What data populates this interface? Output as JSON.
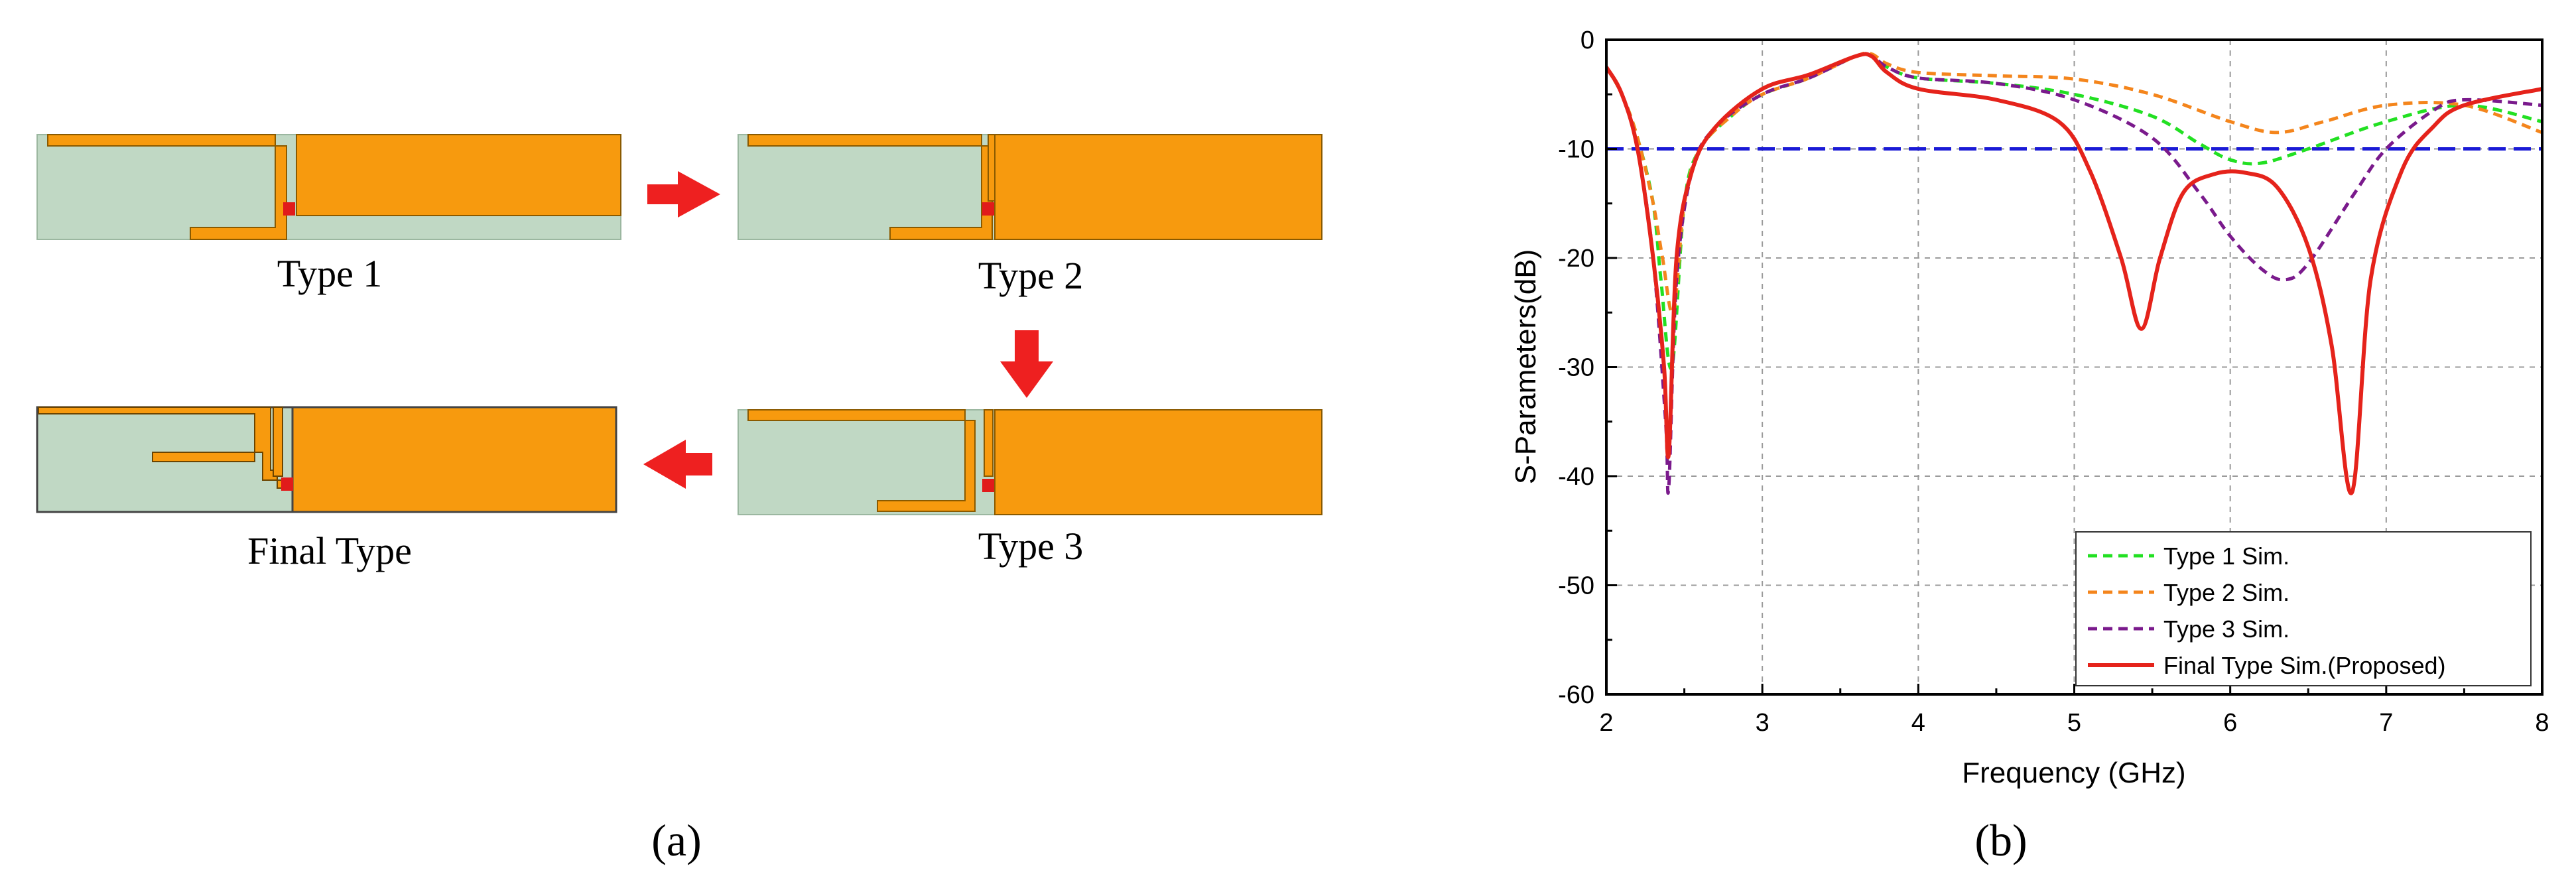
{
  "panel_a": {
    "label": "(a)",
    "types": [
      {
        "name": "Type 1"
      },
      {
        "name": "Type 2"
      },
      {
        "name": "Type 3"
      },
      {
        "name": "Final Type"
      }
    ],
    "colors": {
      "substrate": "#c0d8c4",
      "copper": "#f79a0e",
      "port": "#e11b1b",
      "arrow": "#ee2020"
    }
  },
  "panel_b": {
    "label": "(b)"
  },
  "chart_data": {
    "type": "line",
    "title": "",
    "xlabel": "Frequency (GHz)",
    "ylabel": "S-Parameters(dB)",
    "xlim": [
      2,
      8
    ],
    "ylim": [
      -60,
      0
    ],
    "xticks": [
      2,
      3,
      4,
      5,
      6,
      7,
      8
    ],
    "yticks": [
      0,
      -10,
      -20,
      -30,
      -40,
      -50,
      -60
    ],
    "grid": true,
    "legend_position": "bottom-right",
    "reference_line": {
      "y": -10,
      "color": "#1a1ad6",
      "style": "dashed"
    },
    "series": [
      {
        "name": "Type 1 Sim.",
        "color": "#22e022",
        "style": "dashed",
        "x": [
          2.0,
          2.1,
          2.2,
          2.3,
          2.35,
          2.42,
          2.5,
          2.6,
          2.8,
          3.0,
          3.3,
          3.6,
          3.7,
          3.8,
          4.0,
          4.5,
          5.0,
          5.5,
          5.8,
          6.0,
          6.2,
          6.5,
          7.0,
          7.5,
          8.0
        ],
        "y": [
          -2.5,
          -5,
          -9,
          -15,
          -22,
          -30,
          -15,
          -10,
          -7,
          -5,
          -3.5,
          -1.5,
          -1.5,
          -2.5,
          -3.5,
          -4,
          -5,
          -7,
          -9.5,
          -11,
          -11.3,
          -10,
          -7.5,
          -6,
          -7.5
        ]
      },
      {
        "name": "Type 2 Sim.",
        "color": "#f4851c",
        "style": "dashed",
        "x": [
          2.0,
          2.1,
          2.2,
          2.3,
          2.36,
          2.43,
          2.5,
          2.6,
          2.8,
          3.0,
          3.3,
          3.6,
          3.7,
          3.8,
          4.0,
          4.5,
          5.0,
          5.5,
          6.0,
          6.3,
          6.6,
          7.0,
          7.5,
          8.0
        ],
        "y": [
          -2.5,
          -5,
          -9,
          -15,
          -20,
          -25,
          -15,
          -10,
          -7,
          -5,
          -3.5,
          -1.5,
          -1.3,
          -2.2,
          -3,
          -3.3,
          -3.6,
          -5,
          -7.5,
          -8.5,
          -7.5,
          -6,
          -6,
          -8.5
        ]
      },
      {
        "name": "Type 3 Sim.",
        "color": "#7a1a8c",
        "style": "dashed",
        "x": [
          2.0,
          2.1,
          2.2,
          2.3,
          2.38,
          2.4,
          2.45,
          2.55,
          2.7,
          3.0,
          3.3,
          3.6,
          3.7,
          3.8,
          4.0,
          4.5,
          5.0,
          5.5,
          5.8,
          6.0,
          6.2,
          6.35,
          6.5,
          6.8,
          7.0,
          7.3,
          7.5,
          8.0
        ],
        "y": [
          -2.5,
          -5,
          -10,
          -20,
          -35,
          -41,
          -22,
          -12,
          -8,
          -5,
          -3.5,
          -1.5,
          -1.5,
          -2.5,
          -3.5,
          -4,
          -5.5,
          -9,
          -14,
          -18,
          -21,
          -22,
          -20.5,
          -14,
          -10,
          -6.5,
          -5.5,
          -6
        ]
      },
      {
        "name": "Final Type Sim.(Proposed)",
        "color": "#e5231b",
        "style": "solid",
        "x": [
          2.0,
          2.1,
          2.2,
          2.3,
          2.37,
          2.4,
          2.45,
          2.55,
          2.7,
          3.0,
          3.3,
          3.6,
          3.7,
          3.8,
          4.0,
          4.5,
          4.9,
          5.1,
          5.3,
          5.43,
          5.55,
          5.7,
          5.9,
          6.1,
          6.3,
          6.5,
          6.65,
          6.78,
          6.9,
          7.1,
          7.3,
          7.5,
          8.0
        ],
        "y": [
          -2.5,
          -5,
          -10,
          -20,
          -30,
          -38,
          -20,
          -12,
          -8,
          -4.5,
          -3.2,
          -1.5,
          -1.5,
          -3,
          -4.5,
          -5.5,
          -7.5,
          -12,
          -20,
          -26.5,
          -20,
          -14,
          -12.3,
          -12.2,
          -13.5,
          -19,
          -28,
          -41.5,
          -22,
          -12,
          -8,
          -6,
          -4.5
        ]
      }
    ]
  }
}
